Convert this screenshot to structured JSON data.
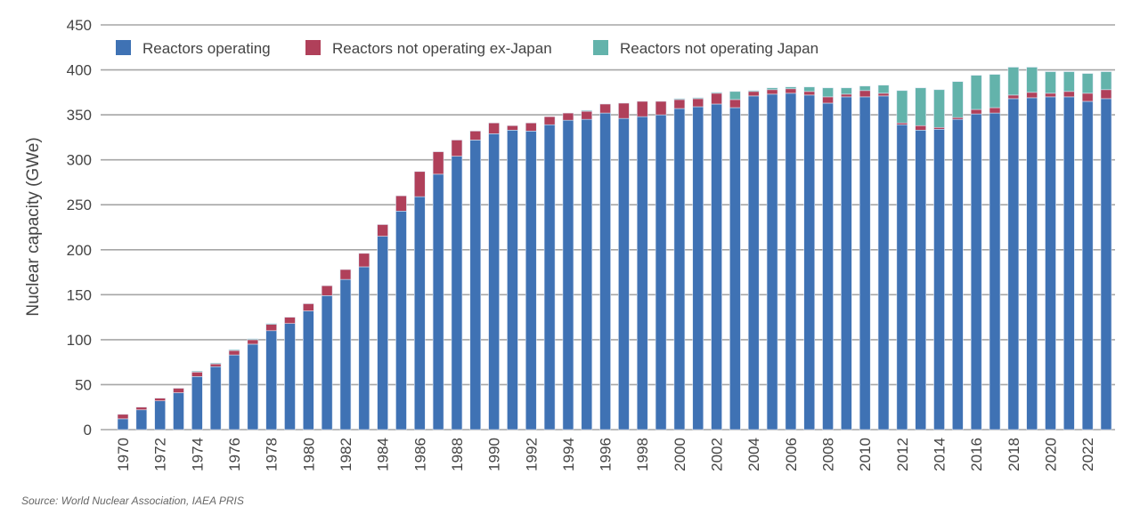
{
  "chart_data": {
    "type": "bar",
    "stacked": true,
    "title": "",
    "xlabel": "",
    "ylabel": "Nuclear capacity (GWe)",
    "ylim": [
      0,
      450
    ],
    "yticks": [
      0,
      50,
      100,
      150,
      200,
      250,
      300,
      350,
      400,
      450
    ],
    "grid": true,
    "legend_position": "top-left",
    "categories": [
      1970,
      1971,
      1972,
      1973,
      1974,
      1975,
      1976,
      1977,
      1978,
      1979,
      1980,
      1981,
      1982,
      1983,
      1984,
      1985,
      1986,
      1987,
      1988,
      1989,
      1990,
      1991,
      1992,
      1993,
      1994,
      1995,
      1996,
      1997,
      1998,
      1999,
      2000,
      2001,
      2002,
      2003,
      2004,
      2005,
      2006,
      2007,
      2008,
      2009,
      2010,
      2011,
      2012,
      2013,
      2014,
      2015,
      2016,
      2017,
      2018,
      2019,
      2020,
      2021,
      2022,
      2023
    ],
    "xtick_labels": [
      "1970",
      "1972",
      "1974",
      "1976",
      "1978",
      "1980",
      "1982",
      "1984",
      "1986",
      "1988",
      "1990",
      "1992",
      "1994",
      "1996",
      "1998",
      "2000",
      "2002",
      "2004",
      "2006",
      "2008",
      "2010",
      "2012",
      "2014",
      "2016",
      "2018",
      "2020",
      "2022"
    ],
    "series": [
      {
        "name": "Reactors operating",
        "color": "#3f72b4",
        "values": [
          12,
          22,
          32,
          41,
          59,
          70,
          83,
          95,
          110,
          118,
          132,
          149,
          167,
          181,
          215,
          243,
          259,
          284,
          304,
          322,
          329,
          333,
          332,
          339,
          344,
          345,
          352,
          346,
          348,
          350,
          357,
          359,
          362,
          358,
          371,
          373,
          374,
          372,
          363,
          370,
          370,
          371,
          339,
          333,
          334,
          345,
          351,
          352,
          368,
          369,
          370,
          370,
          365,
          368
        ]
      },
      {
        "name": "Reactors not operating ex-Japan",
        "color": "#b0405a",
        "values": [
          5,
          3,
          3,
          5,
          5,
          3,
          5,
          5,
          7,
          7,
          8,
          11,
          11,
          15,
          13,
          17,
          28,
          25,
          18,
          10,
          12,
          5,
          9,
          9,
          8,
          9,
          10,
          17,
          17,
          15,
          10,
          9,
          12,
          9,
          5,
          5,
          5,
          4,
          7,
          3,
          7,
          3,
          2,
          5,
          2,
          2,
          5,
          6,
          4,
          6,
          4,
          6,
          9,
          10
        ]
      },
      {
        "name": "Reactors not operating Japan",
        "color": "#63b3ab",
        "values": [
          0,
          0,
          0,
          0,
          1,
          1,
          1,
          1,
          1,
          0,
          0,
          0,
          0,
          0,
          0,
          0,
          0,
          0,
          0,
          0,
          0,
          0,
          0,
          0,
          0,
          1,
          0,
          0,
          0,
          0,
          1,
          1,
          1,
          9,
          1,
          2,
          2,
          5,
          10,
          7,
          5,
          9,
          36,
          42,
          42,
          40,
          38,
          37,
          31,
          28,
          24,
          22,
          22,
          20
        ]
      }
    ]
  },
  "source": "Source: World Nuclear Association, IAEA PRIS"
}
